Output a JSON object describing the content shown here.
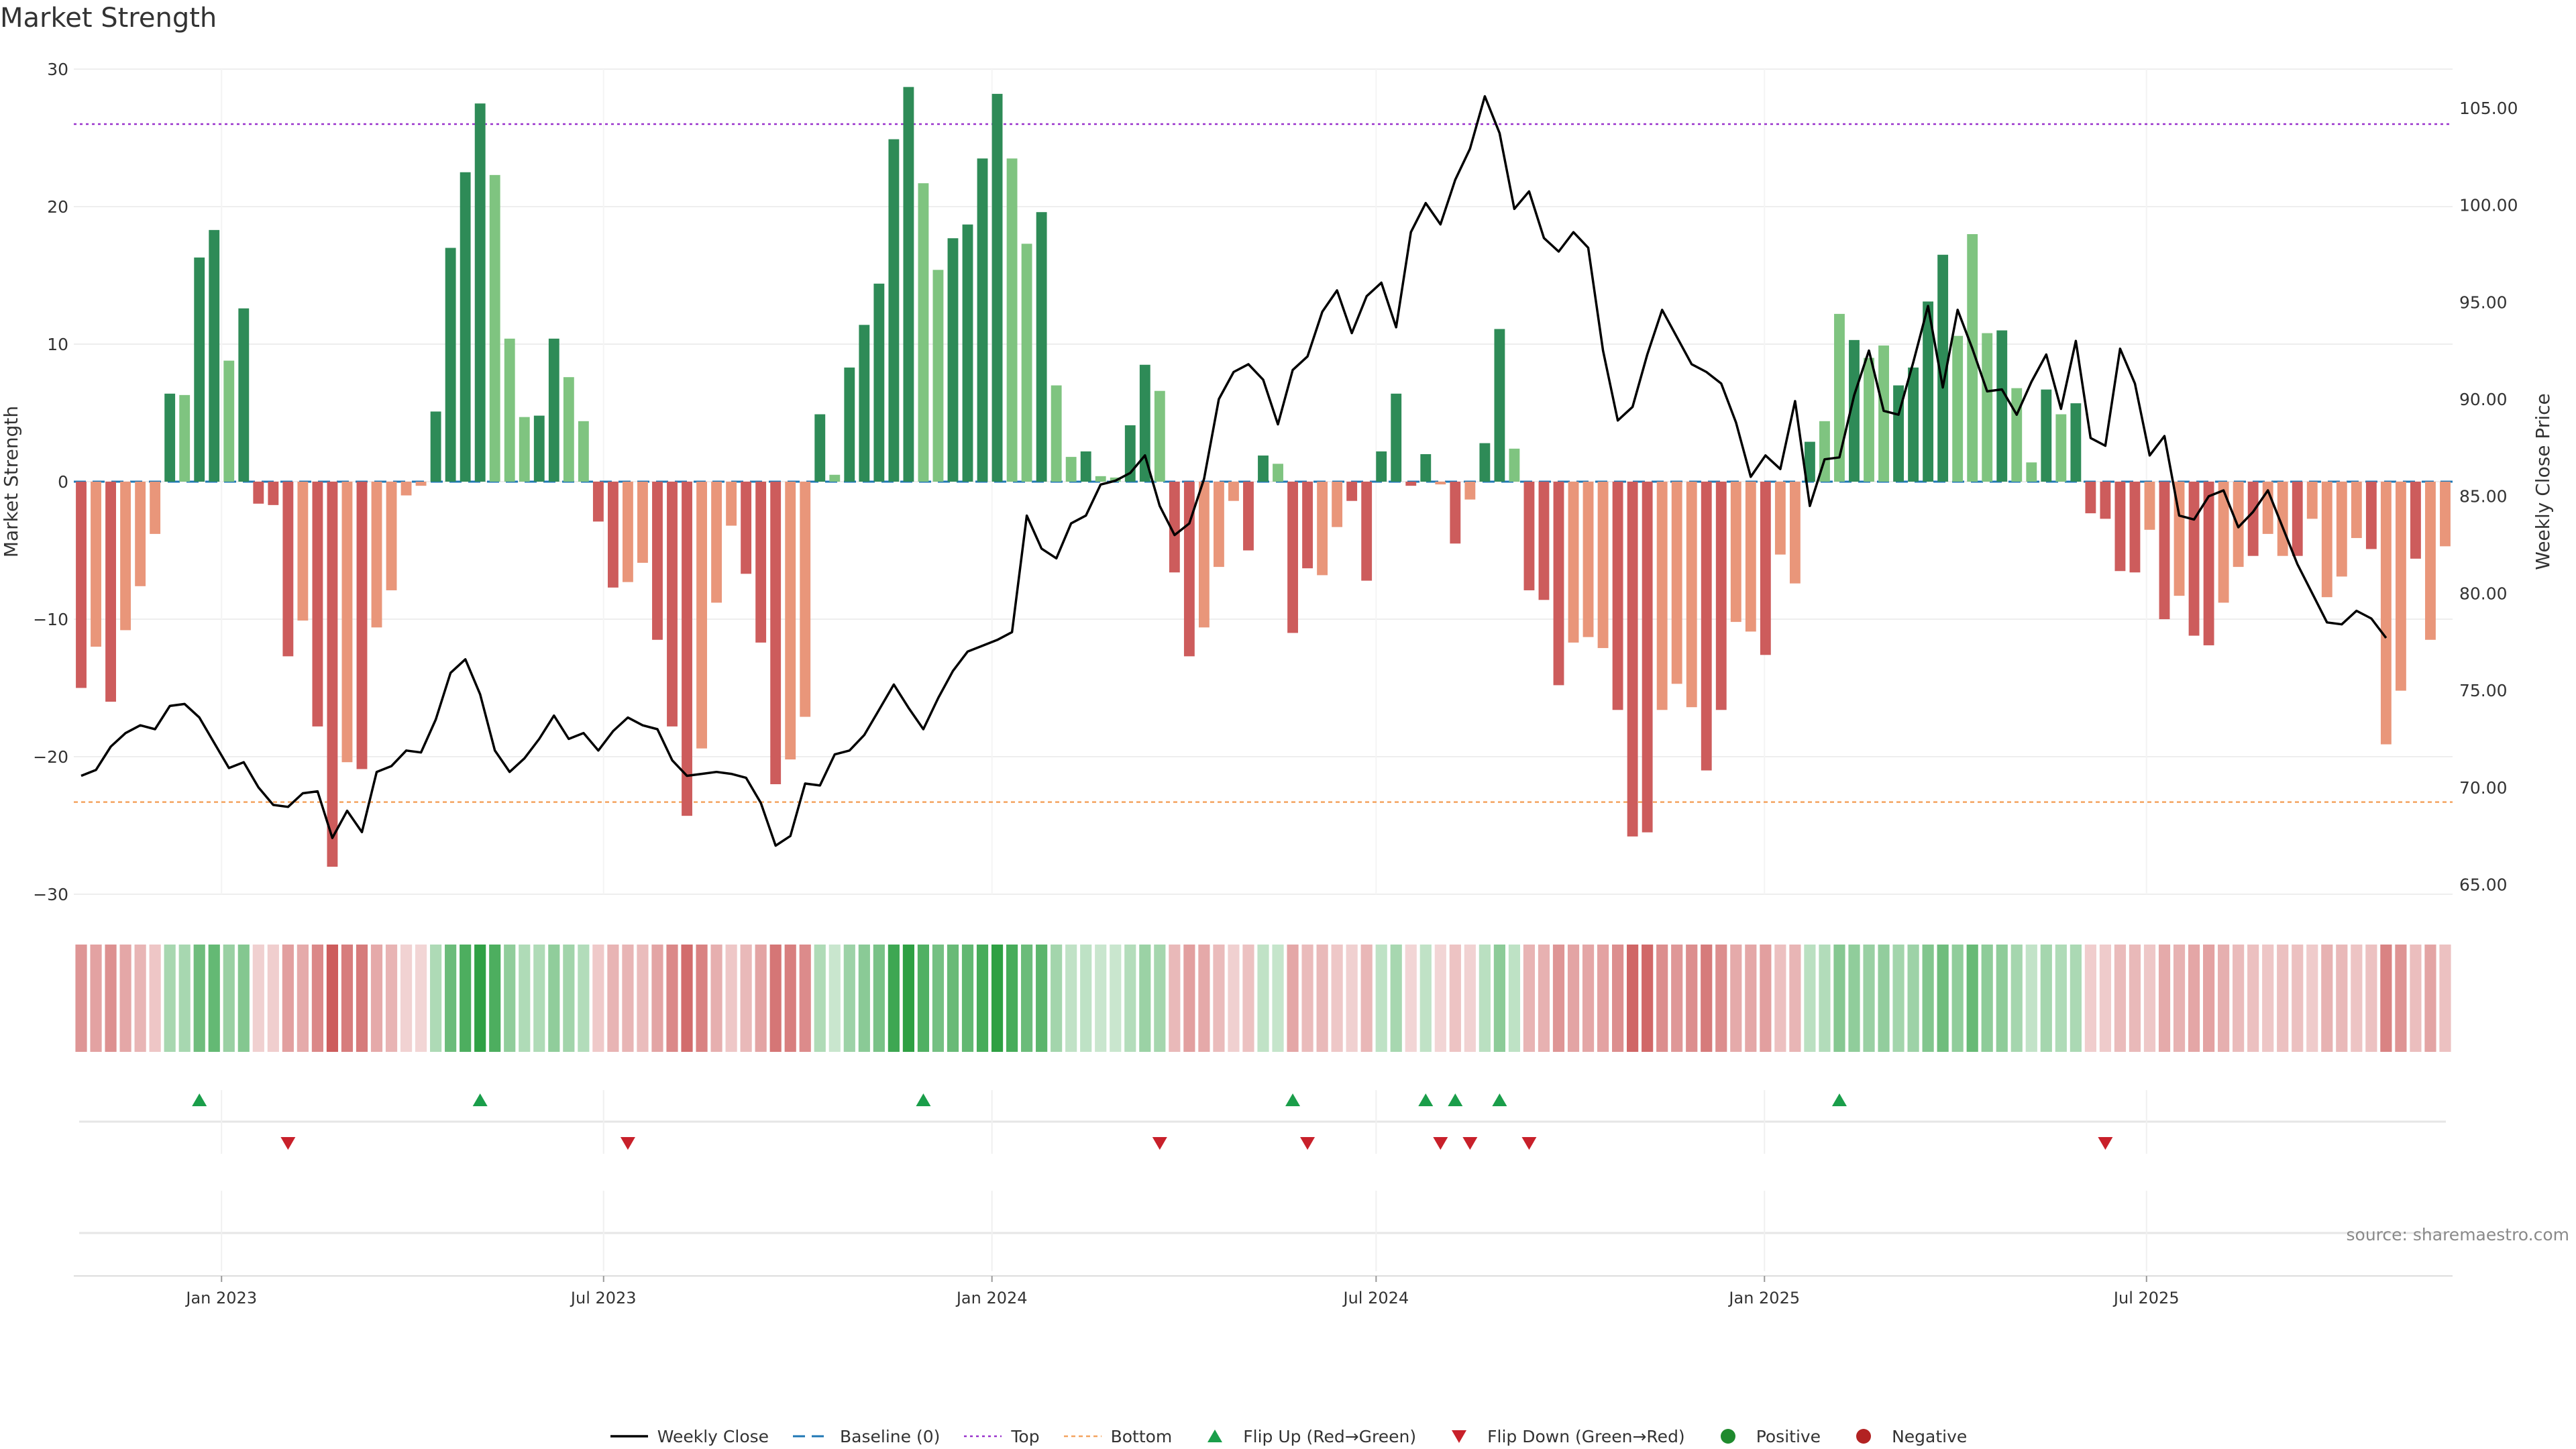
{
  "chart_data": {
    "type": "bar",
    "title": "Market Strength",
    "source_text": "source: sharemaestro.com",
    "y_left": {
      "label": "Market Strength",
      "ylim": [
        -30,
        30
      ],
      "ticks": [
        -30,
        -20,
        -10,
        0,
        10,
        20,
        30
      ]
    },
    "y_right": {
      "label": "Weekly Close Price",
      "ylim": [
        64.5,
        107.0
      ],
      "ticks": [
        "65.00",
        "70.00",
        "75.00",
        "80.00",
        "85.00",
        "90.00",
        "95.00",
        "100.00",
        "105.00"
      ]
    },
    "x_ticks": [
      {
        "label": "Jan 2023",
        "date": "2023-01-01"
      },
      {
        "label": "Jul 2023",
        "date": "2023-07-01"
      },
      {
        "label": "Jan 2024",
        "date": "2024-01-01"
      },
      {
        "label": "Jul 2024",
        "date": "2024-07-01"
      },
      {
        "label": "Jan 2025",
        "date": "2025-01-01"
      },
      {
        "label": "Jul 2025",
        "date": "2025-07-01"
      }
    ],
    "start_date": "2022-10-23",
    "week_days": 7,
    "reference_lines": {
      "top": 26,
      "bottom": -23.3,
      "baseline": 0
    },
    "colors": {
      "pos_strong": "#2e8b57",
      "pos_light": "#7fc480",
      "neg_strong": "#cd5c5c",
      "neg_light": "#e9967a",
      "price_line": "#000000",
      "top_line": "#9932cc",
      "bottom_line": "#f4a460",
      "baseline": "#1f77b4",
      "flip_up": "#1a9e4a",
      "flip_down": "#c8202a",
      "positive_dot": "#1f8a2e",
      "negative_dot": "#b22222",
      "grid": "#eeeeee"
    },
    "strength": [
      -15,
      -12,
      -16,
      -10.8,
      -7.6,
      -3.8,
      6.4,
      6.3,
      16.3,
      18.3,
      8.8,
      12.6,
      -1.6,
      -1.7,
      -12.7,
      -10.1,
      -17.8,
      -28,
      -20.4,
      -20.9,
      -10.6,
      -7.9,
      -1,
      -0.3,
      5.1,
      17,
      22.5,
      27.5,
      22.3,
      10.4,
      4.7,
      4.8,
      10.4,
      7.6,
      4.4,
      -2.9,
      -7.7,
      -7.3,
      -5.9,
      -11.5,
      -17.8,
      -24.3,
      -19.4,
      -8.8,
      -3.2,
      -6.7,
      -11.7,
      -22,
      -20.2,
      -17.1,
      4.9,
      0.5,
      8.3,
      11.4,
      14.4,
      24.9,
      28.7,
      21.7,
      15.4,
      17.7,
      18.7,
      23.5,
      28.2,
      23.5,
      17.3,
      19.6,
      7,
      1.8,
      2.2,
      0.4,
      0.3,
      4.1,
      8.5,
      6.6,
      -6.6,
      -12.7,
      -10.6,
      -6.2,
      -1.4,
      -5,
      1.9,
      1.3,
      -11,
      -6.3,
      -6.8,
      -3.3,
      -1.4,
      -7.2,
      2.2,
      6.4,
      -0.3,
      2,
      -0.2,
      -4.5,
      -1.3,
      2.8,
      11.1,
      2.4,
      -7.9,
      -8.6,
      -14.8,
      -11.7,
      -11.3,
      -12.1,
      -16.6,
      -25.8,
      -25.5,
      -16.6,
      -14.7,
      -16.4,
      -21,
      -16.6,
      -10.2,
      -10.9,
      -12.6,
      -5.3,
      -7.4,
      2.9,
      4.4,
      12.2,
      10.3,
      9,
      9.9,
      7,
      8.3,
      13.1,
      16.5,
      10.6,
      18,
      10.8,
      11,
      6.8,
      1.4,
      6.7,
      4.9,
      5.7,
      -2.3,
      -2.7,
      -6.5,
      -6.6,
      -3.5,
      -10,
      -8.3,
      -11.2,
      -11.9,
      -8.8,
      -6.2,
      -5.4,
      -3.8,
      -5.4,
      -5.4,
      -2.7,
      -8.4,
      -6.9,
      -4.1,
      -4.9,
      -19.1,
      -15.2,
      -5.6,
      -11.5,
      -4.7
    ],
    "weekly_close": [
      70.6,
      70.9,
      72.1,
      72.8,
      73.2,
      73,
      74.2,
      74.3,
      73.6,
      72.3,
      71,
      71.3,
      70,
      69.1,
      69,
      69.7,
      69.8,
      67.4,
      68.8,
      67.7,
      70.8,
      71.1,
      71.9,
      71.8,
      73.5,
      75.9,
      76.6,
      74.8,
      71.9,
      70.8,
      71.5,
      72.5,
      73.7,
      72.5,
      72.8,
      71.9,
      72.9,
      73.6,
      73.2,
      73,
      71.4,
      70.6,
      70.7,
      70.8,
      70.7,
      70.5,
      69.2,
      67,
      67.5,
      70.2,
      70.1,
      71.7,
      71.9,
      72.7,
      74,
      75.3,
      74.1,
      73,
      74.6,
      76,
      77,
      77.3,
      77.6,
      78,
      84,
      82.3,
      81.8,
      83.6,
      84,
      85.6,
      85.8,
      86.2,
      87.1,
      84.5,
      83,
      83.6,
      85.9,
      90,
      91.4,
      91.8,
      91,
      88.7,
      91.5,
      92.2,
      94.5,
      95.6,
      93.4,
      95.3,
      96,
      93.7,
      98.6,
      100.1,
      99,
      101.3,
      102.9,
      105.6,
      103.7,
      99.8,
      100.7,
      98.3,
      97.6,
      98.6,
      97.8,
      92.5,
      88.9,
      89.6,
      92.3,
      94.6,
      93.2,
      91.8,
      91.4,
      90.8,
      88.8,
      86,
      87.1,
      86.4,
      89.9,
      84.5,
      86.9,
      87,
      90.2,
      92.5,
      89.4,
      89.2,
      91.9,
      94.8,
      90.6,
      94.6,
      92.6,
      90.4,
      90.5,
      89.2,
      90.9,
      92.3,
      89.5,
      93,
      88,
      87.6,
      92.6,
      90.8,
      87.1,
      88.1,
      84,
      83.8,
      85,
      85.3,
      83.4,
      84.2,
      85.3,
      83.4,
      81.5,
      80,
      78.5,
      78.4,
      79.1,
      78.7,
      77.7
    ],
    "light_pattern": [
      0,
      1,
      0,
      1,
      1,
      1,
      0,
      1,
      0,
      0,
      1,
      0,
      0,
      0,
      0,
      1,
      0,
      0,
      1,
      0,
      1,
      1,
      1,
      1,
      0,
      0,
      0,
      0,
      1,
      1,
      1,
      0,
      0,
      1,
      1,
      0,
      0,
      1,
      1,
      0,
      0,
      0,
      1,
      1,
      1,
      0,
      0,
      0,
      1,
      1,
      0,
      1,
      0,
      0,
      0,
      0,
      0,
      1,
      1,
      0,
      0,
      0,
      0,
      1,
      1,
      0,
      1,
      1,
      0,
      1,
      1,
      0,
      0,
      1,
      0,
      0,
      1,
      1,
      1,
      0,
      0,
      1,
      0,
      0,
      1,
      1,
      0,
      0,
      0,
      0,
      0,
      0,
      1,
      0,
      1,
      0,
      0,
      1,
      0,
      0,
      0,
      1,
      1,
      1,
      0,
      0,
      0,
      1,
      1,
      1,
      0,
      0,
      1,
      1,
      0,
      1,
      1,
      0,
      1,
      1,
      0,
      1,
      1,
      0,
      0,
      0,
      0,
      1,
      1,
      1,
      0,
      1,
      1,
      0,
      1,
      0,
      0,
      0,
      0,
      0,
      1,
      0,
      1,
      0,
      0,
      1,
      1,
      0,
      1,
      1,
      0,
      1,
      1,
      1,
      1,
      0,
      1,
      1,
      0,
      1,
      1
    ],
    "flip_up": [
      "2022-12-18",
      "2023-04-30",
      "2023-11-26",
      "2024-05-19",
      "2024-07-21",
      "2024-08-04",
      "2024-08-25",
      "2025-02-02"
    ],
    "flip_down": [
      "2023-01-29",
      "2023-07-09",
      "2024-03-17",
      "2024-05-26",
      "2024-07-28",
      "2024-08-11",
      "2024-09-08",
      "2025-06-08"
    ],
    "legend": [
      {
        "key": "weekly_close",
        "label": "Weekly Close"
      },
      {
        "key": "baseline",
        "label": "Baseline (0)"
      },
      {
        "key": "top",
        "label": "Top"
      },
      {
        "key": "bottom",
        "label": "Bottom"
      },
      {
        "key": "flip_up",
        "label": "Flip Up (Red→Green)"
      },
      {
        "key": "flip_down",
        "label": "Flip Down (Green→Red)"
      },
      {
        "key": "positive",
        "label": "Positive"
      },
      {
        "key": "negative",
        "label": "Negative"
      }
    ]
  }
}
